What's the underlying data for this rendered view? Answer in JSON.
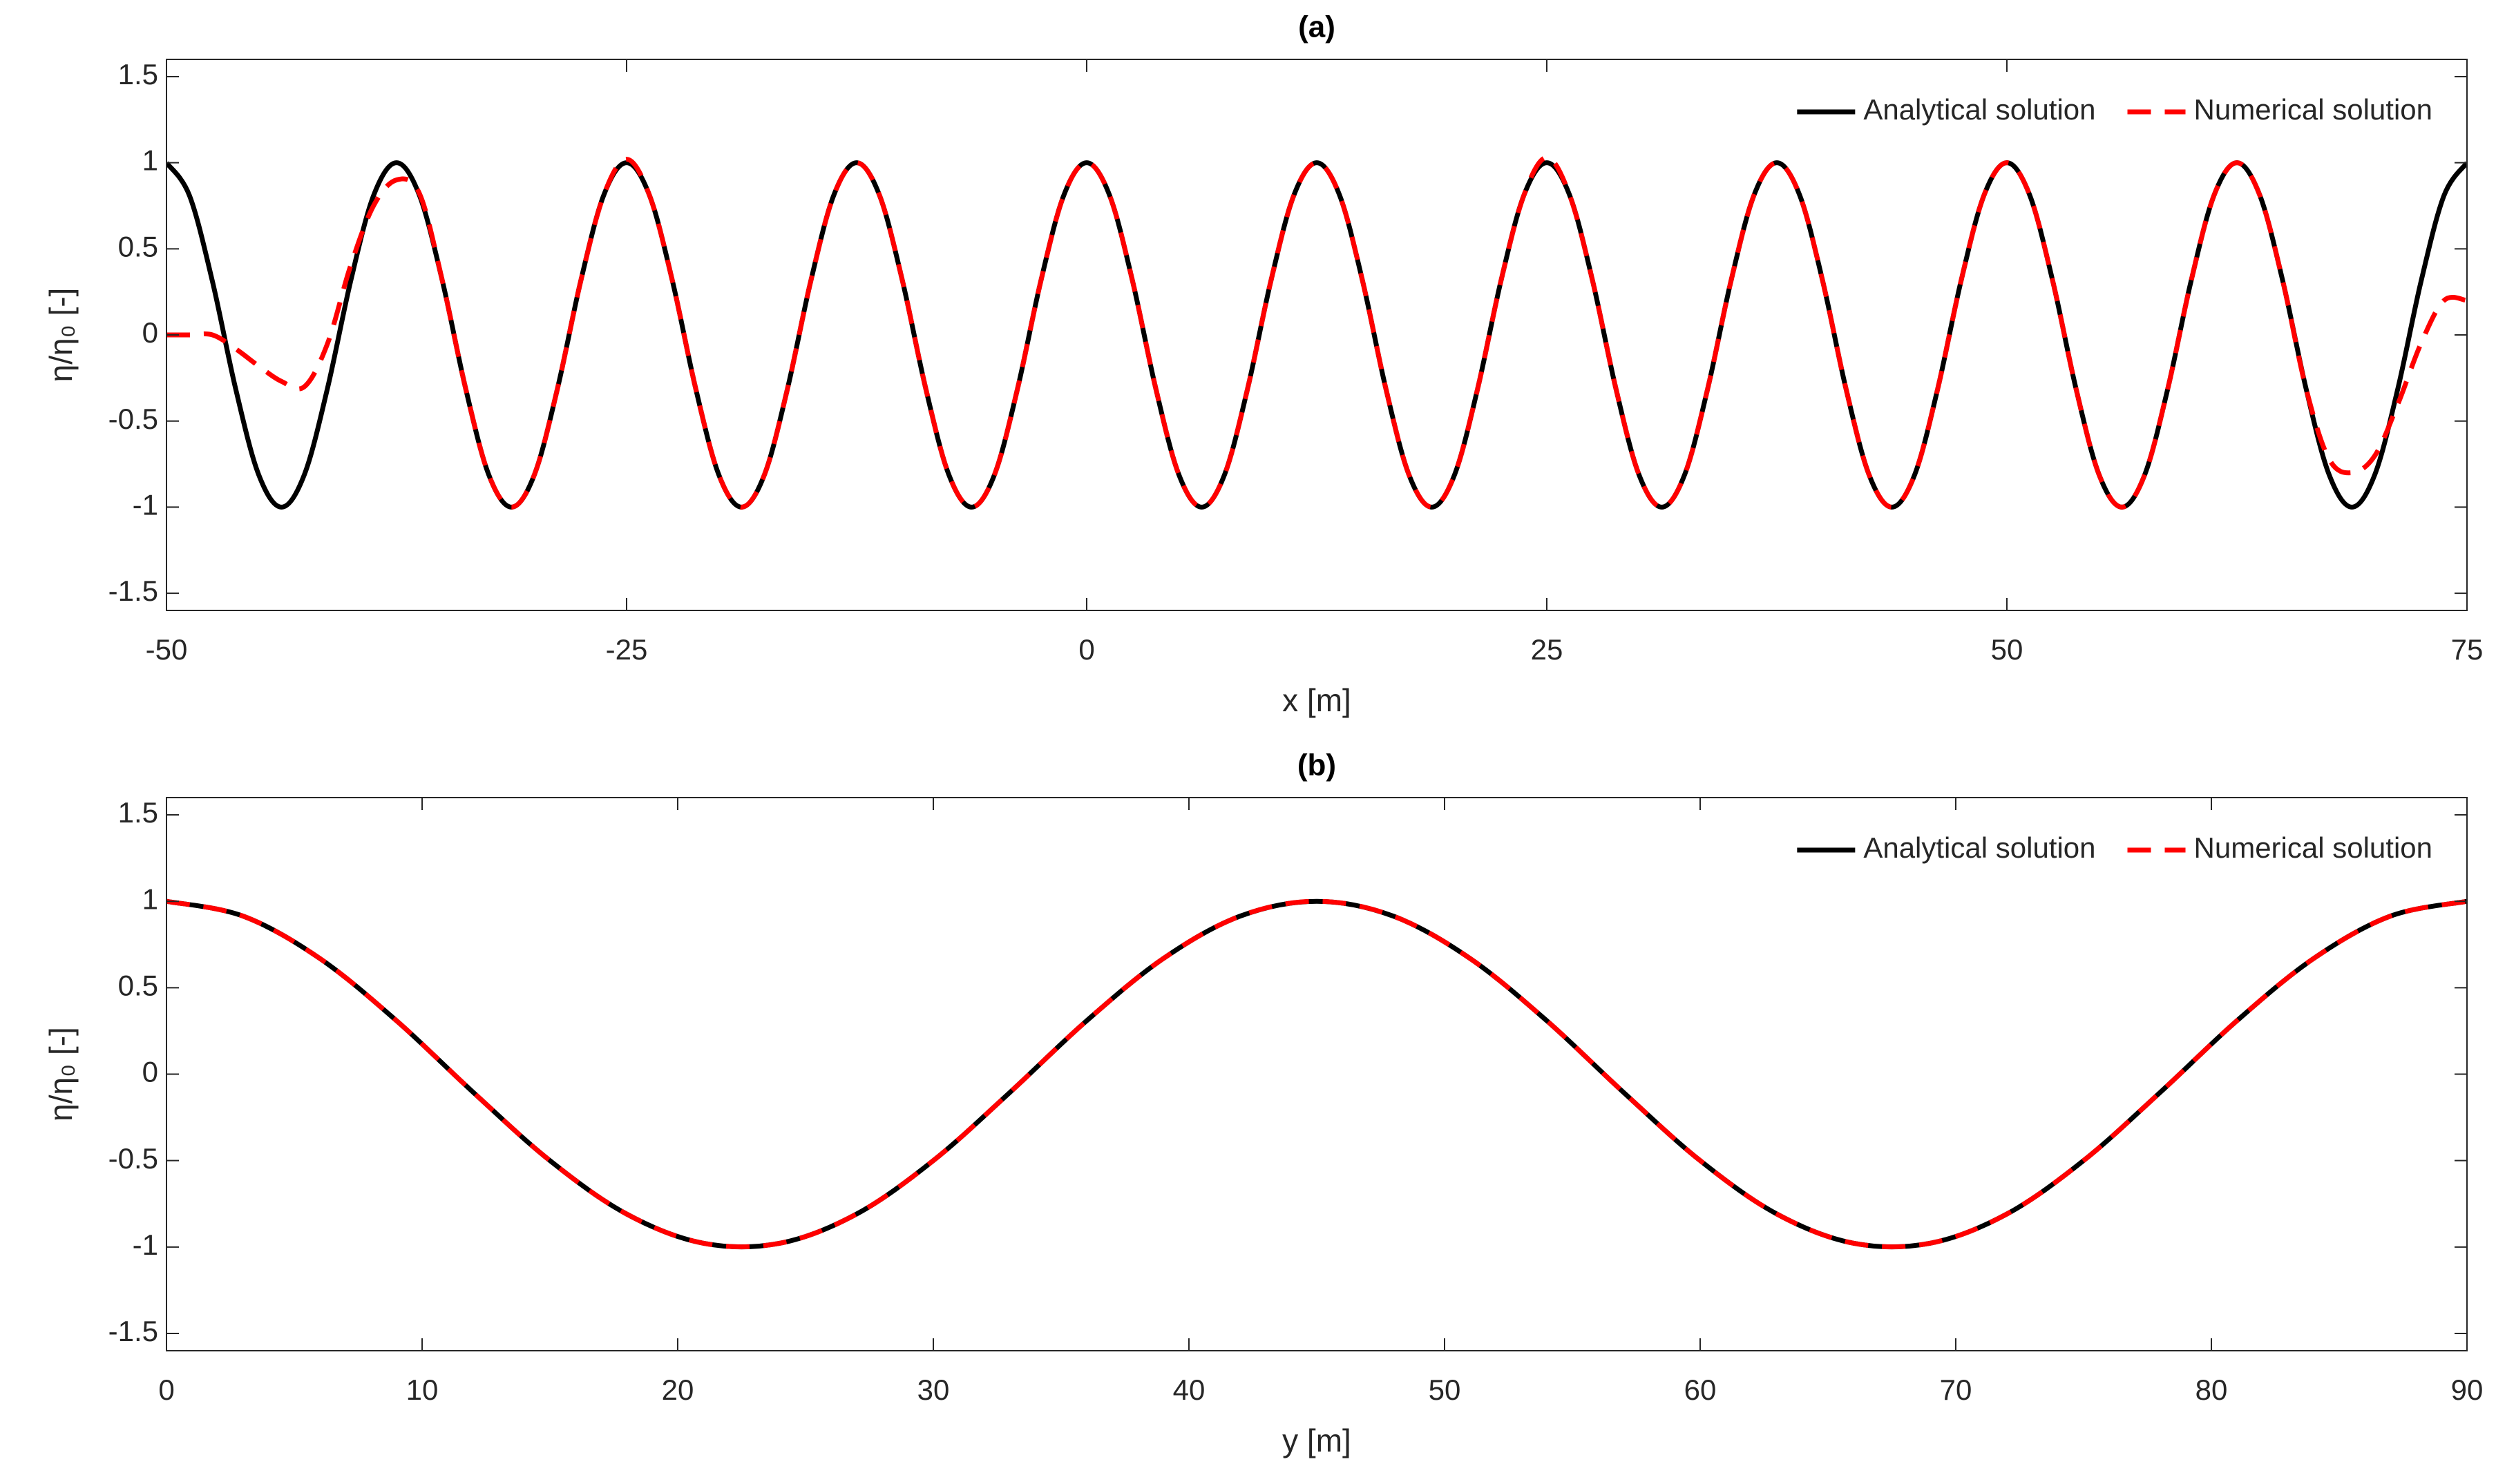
{
  "chart_data": [
    {
      "type": "line",
      "title": "(a)",
      "xlabel": "x [m]",
      "ylabel": "η/η₀ [-]",
      "xlim": [
        -50,
        75
      ],
      "xticks": [
        -50,
        -25,
        0,
        25,
        50,
        75
      ],
      "ylim": [
        -1.6,
        1.6
      ],
      "yticks": [
        -1.5,
        -1,
        -0.5,
        0,
        0.5,
        1,
        1.5
      ],
      "legend": "northeast",
      "grid": false,
      "x": [
        -50,
        -48.75,
        -47.5,
        -46.25,
        -45,
        -43.75,
        -42.5,
        -41.25,
        -40,
        -38.75,
        -37.5,
        -36.25,
        -35,
        -33.75,
        -32.5,
        -31.25,
        -30,
        -28.75,
        -27.5,
        -26.25,
        -25,
        -23.75,
        -22.5,
        -21.25,
        -20,
        -18.75,
        -17.5,
        -16.25,
        -15,
        -13.75,
        -12.5,
        -11.25,
        -10,
        -8.75,
        -7.5,
        -6.25,
        -5,
        -3.75,
        -2.5,
        -1.25,
        0,
        1.25,
        2.5,
        3.75,
        5,
        6.25,
        7.5,
        8.75,
        10,
        11.25,
        12.5,
        13.75,
        15,
        16.25,
        17.5,
        18.75,
        20,
        21.25,
        22.5,
        23.75,
        25,
        26.25,
        27.5,
        28.75,
        30,
        31.25,
        32.5,
        33.75,
        35,
        36.25,
        37.5,
        38.75,
        40,
        41.25,
        42.5,
        43.75,
        45,
        46.25,
        47.5,
        48.75,
        50,
        51.25,
        52.5,
        53.75,
        55,
        56.25,
        57.5,
        58.75,
        60,
        61.25,
        62.5,
        63.75,
        65,
        66.25,
        67.5,
        68.75,
        70,
        71.25,
        72.5,
        73.75,
        75
      ],
      "series": [
        {
          "name": "Analytical solution",
          "color": "#000000",
          "linestyle": "solid",
          "values": [
            1,
            0.809,
            0.309,
            -0.309,
            -0.809,
            -1,
            -0.809,
            -0.309,
            0.309,
            0.809,
            1,
            0.809,
            0.309,
            -0.309,
            -0.809,
            -1,
            -0.809,
            -0.309,
            0.309,
            0.809,
            1,
            0.809,
            0.309,
            -0.309,
            -0.809,
            -1,
            -0.809,
            -0.309,
            0.309,
            0.809,
            1,
            0.809,
            0.309,
            -0.309,
            -0.809,
            -1,
            -0.809,
            -0.309,
            0.309,
            0.809,
            1,
            0.809,
            0.309,
            -0.309,
            -0.809,
            -1,
            -0.809,
            -0.309,
            0.309,
            0.809,
            1,
            0.809,
            0.309,
            -0.309,
            -0.809,
            -1,
            -0.809,
            -0.309,
            0.309,
            0.809,
            1,
            0.809,
            0.309,
            -0.309,
            -0.809,
            -1,
            -0.809,
            -0.309,
            0.309,
            0.809,
            1,
            0.809,
            0.309,
            -0.309,
            -0.809,
            -1,
            -0.809,
            -0.309,
            0.309,
            0.809,
            1,
            0.809,
            0.309,
            -0.309,
            -0.809,
            -1,
            -0.809,
            -0.309,
            0.309,
            0.809,
            1,
            0.809,
            0.309,
            -0.309,
            -0.809,
            -1,
            -0.809,
            -0.309,
            0.309,
            0.809,
            1
          ]
        },
        {
          "name": "Numerical solution",
          "color": "#ff0000",
          "linestyle": "dashed",
          "values": [
            0,
            0,
            0,
            -0.08,
            -0.18,
            -0.27,
            -0.3,
            -0.05,
            0.4,
            0.75,
            0.9,
            0.82,
            0.309,
            -0.309,
            -0.809,
            -1,
            -0.809,
            -0.309,
            0.309,
            0.809,
            1.02,
            0.809,
            0.309,
            -0.309,
            -0.809,
            -1,
            -0.809,
            -0.309,
            0.309,
            0.809,
            1,
            0.809,
            0.309,
            -0.309,
            -0.809,
            -1,
            -0.809,
            -0.309,
            0.309,
            0.809,
            1,
            0.809,
            0.309,
            -0.309,
            -0.809,
            -1,
            -0.809,
            -0.309,
            0.309,
            0.809,
            1,
            0.809,
            0.309,
            -0.309,
            -0.809,
            -1,
            -0.809,
            -0.309,
            0.309,
            0.809,
            1.03,
            0.809,
            0.309,
            -0.309,
            -0.809,
            -1,
            -0.809,
            -0.309,
            0.309,
            0.809,
            1,
            0.809,
            0.309,
            -0.309,
            -0.809,
            -1,
            -0.809,
            -0.309,
            0.309,
            0.809,
            1,
            0.809,
            0.309,
            -0.309,
            -0.809,
            -1,
            -0.809,
            -0.309,
            0.309,
            0.809,
            1,
            0.809,
            0.309,
            -0.309,
            -0.72,
            -0.8,
            -0.7,
            -0.4,
            -0.05,
            0.2,
            0.2
          ]
        }
      ]
    },
    {
      "type": "line",
      "title": "(b)",
      "xlabel": "y [m]",
      "ylabel": "η/η₀ [-]",
      "xlim": [
        0,
        90
      ],
      "xticks": [
        0,
        10,
        20,
        30,
        40,
        50,
        60,
        70,
        80,
        90
      ],
      "ylim": [
        -1.6,
        1.6
      ],
      "yticks": [
        -1.5,
        -1,
        -0.5,
        0,
        0.5,
        1,
        1.5
      ],
      "legend": "northeast",
      "grid": false,
      "x": [
        0,
        3,
        6,
        9,
        12,
        15,
        18,
        21,
        24,
        27,
        30,
        33,
        36,
        39,
        42,
        45,
        48,
        51,
        54,
        57,
        60,
        63,
        66,
        69,
        72,
        75,
        78,
        81,
        84,
        87,
        90
      ],
      "series": [
        {
          "name": "Analytical solution",
          "color": "#000000",
          "linestyle": "solid",
          "values": [
            1,
            0.914,
            0.669,
            0.309,
            -0.105,
            -0.5,
            -0.809,
            -0.978,
            -0.978,
            -0.809,
            -0.5,
            -0.105,
            0.309,
            0.669,
            0.914,
            1,
            0.914,
            0.669,
            0.309,
            -0.105,
            -0.5,
            -0.809,
            -0.978,
            -0.978,
            -0.809,
            -0.5,
            -0.105,
            0.309,
            0.669,
            0.914,
            1
          ]
        },
        {
          "name": "Numerical solution",
          "color": "#ff0000",
          "linestyle": "dashed",
          "values": [
            1,
            0.914,
            0.669,
            0.309,
            -0.105,
            -0.5,
            -0.809,
            -0.978,
            -0.978,
            -0.809,
            -0.5,
            -0.105,
            0.309,
            0.669,
            0.914,
            1,
            0.914,
            0.669,
            0.309,
            -0.105,
            -0.5,
            -0.809,
            -0.978,
            -0.978,
            -0.809,
            -0.5,
            -0.105,
            0.309,
            0.669,
            0.914,
            1
          ]
        }
      ]
    }
  ]
}
